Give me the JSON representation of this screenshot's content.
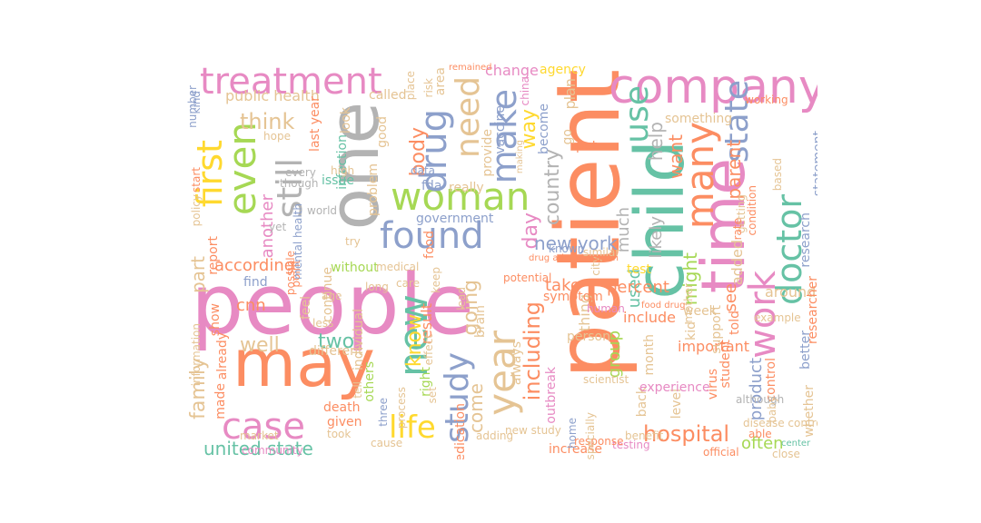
{
  "palette": {
    "pink": "#e78ac3",
    "orange": "#fc8d62",
    "teal": "#66c2a5",
    "blue": "#8da0cb",
    "green": "#a6d854",
    "yellow": "#ffd92f",
    "tan": "#e5c494",
    "gray": "#b3b3b3"
  },
  "words": [
    {
      "text": "people",
      "color": "pink"
    },
    {
      "text": "patient",
      "color": "orange"
    },
    {
      "text": "one",
      "color": "gray"
    },
    {
      "text": "may",
      "color": "orange"
    },
    {
      "text": "child",
      "color": "teal"
    },
    {
      "text": "time",
      "color": "pink"
    },
    {
      "text": "company",
      "color": "pink"
    },
    {
      "text": "treatment",
      "color": "pink"
    },
    {
      "text": "woman",
      "color": "green"
    },
    {
      "text": "many",
      "color": "orange"
    },
    {
      "text": "work",
      "color": "pink"
    },
    {
      "text": "doctor",
      "color": "teal"
    },
    {
      "text": "new",
      "color": "teal"
    },
    {
      "text": "year",
      "color": "tan"
    },
    {
      "text": "study",
      "color": "blue"
    },
    {
      "text": "drug",
      "color": "blue"
    },
    {
      "text": "found",
      "color": "blue"
    },
    {
      "text": "even",
      "color": "green"
    },
    {
      "text": "first",
      "color": "yellow"
    },
    {
      "text": "still",
      "color": "gray"
    },
    {
      "text": "case",
      "color": "pink"
    },
    {
      "text": "make",
      "color": "blue"
    },
    {
      "text": "need",
      "color": "tan"
    },
    {
      "text": "state",
      "color": "blue"
    },
    {
      "text": "use",
      "color": "teal"
    },
    {
      "text": "life",
      "color": "yellow"
    },
    {
      "text": "including",
      "color": "orange"
    },
    {
      "text": "hospital",
      "color": "orange"
    },
    {
      "text": "united state",
      "color": "teal"
    },
    {
      "text": "family",
      "color": "tan"
    },
    {
      "text": "well",
      "color": "tan"
    },
    {
      "text": "think",
      "color": "tan"
    },
    {
      "text": "part",
      "color": "tan"
    },
    {
      "text": "way",
      "color": "yellow"
    },
    {
      "text": "day",
      "color": "pink"
    },
    {
      "text": "country",
      "color": "gray"
    },
    {
      "text": "body",
      "color": "orange"
    },
    {
      "text": "know",
      "color": "yellow"
    },
    {
      "text": "going",
      "color": "tan"
    },
    {
      "text": "come",
      "color": "tan"
    },
    {
      "text": "parent",
      "color": "orange"
    },
    {
      "text": "help",
      "color": "gray"
    },
    {
      "text": "want",
      "color": "orange"
    },
    {
      "text": "added",
      "color": "tan"
    },
    {
      "text": "product",
      "color": "blue"
    },
    {
      "text": "might",
      "color": "green"
    },
    {
      "text": "group",
      "color": "green"
    },
    {
      "text": "used",
      "color": "teal"
    },
    {
      "text": "new york",
      "color": "blue"
    },
    {
      "text": "much",
      "color": "gray"
    },
    {
      "text": "likely",
      "color": "gray"
    },
    {
      "text": "often",
      "color": "green"
    },
    {
      "text": "two",
      "color": "teal"
    },
    {
      "text": "according",
      "color": "orange"
    },
    {
      "text": "another",
      "color": "pink"
    },
    {
      "text": "cnn",
      "color": "orange"
    },
    {
      "text": "take",
      "color": "orange"
    },
    {
      "text": "percent",
      "color": "orange"
    },
    {
      "text": "see",
      "color": "orange"
    },
    {
      "text": "told",
      "color": "orange"
    },
    {
      "text": "around",
      "color": "tan"
    },
    {
      "text": "thing",
      "color": "tan"
    },
    {
      "text": "important",
      "color": "orange"
    },
    {
      "text": "include",
      "color": "orange"
    },
    {
      "text": "result",
      "color": "orange"
    },
    {
      "text": "research",
      "color": "blue"
    },
    {
      "text": "researcher",
      "color": "orange"
    },
    {
      "text": "statement",
      "color": "blue"
    },
    {
      "text": "government",
      "color": "blue"
    },
    {
      "text": "public health",
      "color": "tan"
    },
    {
      "text": "change",
      "color": "pink"
    },
    {
      "text": "agency",
      "color": "yellow"
    },
    {
      "text": "china",
      "color": "pink"
    },
    {
      "text": "plan",
      "color": "tan"
    },
    {
      "text": "become",
      "color": "blue"
    },
    {
      "text": "food",
      "color": "orange"
    },
    {
      "text": "report",
      "color": "orange"
    },
    {
      "text": "test",
      "color": "yellow"
    },
    {
      "text": "week",
      "color": "tan"
    },
    {
      "text": "kid",
      "color": "tan"
    },
    {
      "text": "virus",
      "color": "orange"
    },
    {
      "text": "back",
      "color": "tan"
    },
    {
      "text": "month",
      "color": "tan"
    },
    {
      "text": "level",
      "color": "tan"
    },
    {
      "text": "support",
      "color": "tan"
    },
    {
      "text": "something",
      "color": "tan"
    },
    {
      "text": "experience",
      "color": "pink"
    },
    {
      "text": "increase",
      "color": "orange"
    },
    {
      "text": "testing",
      "color": "pink"
    },
    {
      "text": "official",
      "color": "orange"
    },
    {
      "text": "better",
      "color": "blue"
    },
    {
      "text": "whether",
      "color": "tan"
    },
    {
      "text": "made",
      "color": "orange"
    },
    {
      "text": "already",
      "color": "orange"
    },
    {
      "text": "death",
      "color": "orange"
    },
    {
      "text": "given",
      "color": "orange"
    },
    {
      "text": "show",
      "color": "orange"
    },
    {
      "text": "information",
      "color": "tan"
    },
    {
      "text": "feel",
      "color": "tan"
    },
    {
      "text": "individual",
      "color": "tan"
    },
    {
      "text": "different",
      "color": "tan"
    },
    {
      "text": "without",
      "color": "green"
    },
    {
      "text": "others",
      "color": "green"
    },
    {
      "text": "right",
      "color": "green"
    },
    {
      "text": "called",
      "color": "tan"
    },
    {
      "text": "good",
      "color": "tan"
    },
    {
      "text": "issue",
      "color": "teal"
    },
    {
      "text": "problem",
      "color": "tan"
    },
    {
      "text": "last year",
      "color": "orange"
    },
    {
      "text": "infection",
      "color": "teal"
    },
    {
      "text": "though",
      "color": "gray"
    },
    {
      "text": "continue",
      "color": "tan"
    },
    {
      "text": "point",
      "color": "orange"
    },
    {
      "text": "possible",
      "color": "orange"
    },
    {
      "text": "find",
      "color": "blue"
    },
    {
      "text": "look",
      "color": "tan"
    },
    {
      "text": "really",
      "color": "tan"
    },
    {
      "text": "vaccine",
      "color": "blue"
    },
    {
      "text": "provide",
      "color": "tan"
    },
    {
      "text": "data",
      "color": "blue"
    },
    {
      "text": "fda",
      "color": "blue"
    },
    {
      "text": "area",
      "color": "tan"
    },
    {
      "text": "person",
      "color": "tan"
    },
    {
      "text": "symptom",
      "color": "orange"
    },
    {
      "text": "known",
      "color": "blue"
    },
    {
      "text": "medication",
      "color": "orange"
    },
    {
      "text": "brain",
      "color": "tan"
    },
    {
      "text": "outbreak",
      "color": "pink"
    },
    {
      "text": "always",
      "color": "tan"
    },
    {
      "text": "effect",
      "color": "tan"
    },
    {
      "text": "home",
      "color": "blue"
    },
    {
      "text": "put",
      "color": "orange"
    },
    {
      "text": "go",
      "color": "tan"
    },
    {
      "text": "mother",
      "color": "tan"
    },
    {
      "text": "getting",
      "color": "tan"
    },
    {
      "text": "condition",
      "color": "orange"
    },
    {
      "text": "working",
      "color": "orange"
    },
    {
      "text": "student",
      "color": "orange"
    },
    {
      "text": "control",
      "color": "orange"
    },
    {
      "text": "disease control",
      "color": "tan"
    },
    {
      "text": "market",
      "color": "tan"
    },
    {
      "text": "community",
      "color": "pink"
    },
    {
      "text": "lead",
      "color": "tan"
    },
    {
      "text": "set",
      "color": "tan"
    },
    {
      "text": "response",
      "color": "orange"
    },
    {
      "text": "number",
      "color": "blue"
    },
    {
      "text": "policy",
      "color": "tan"
    },
    {
      "text": "start",
      "color": "orange"
    },
    {
      "text": "every",
      "color": "gray"
    },
    {
      "text": "world",
      "color": "gray"
    },
    {
      "text": "especially",
      "color": "tan"
    },
    {
      "text": "baby",
      "color": "tan"
    },
    {
      "text": "although",
      "color": "gray"
    },
    {
      "text": "able",
      "color": "orange"
    },
    {
      "text": "age",
      "color": "tan"
    },
    {
      "text": "yet",
      "color": "gray"
    },
    {
      "text": "tell",
      "color": "tan"
    },
    {
      "text": "try",
      "color": "tan"
    },
    {
      "text": "three",
      "color": "blue"
    },
    {
      "text": "city",
      "color": "tan"
    },
    {
      "text": "process",
      "color": "tan"
    },
    {
      "text": "risk",
      "color": "tan"
    },
    {
      "text": "place",
      "color": "tan"
    },
    {
      "text": "remained",
      "color": "orange"
    },
    {
      "text": "kind",
      "color": "blue"
    },
    {
      "text": "hope",
      "color": "tan"
    },
    {
      "text": "potential",
      "color": "orange"
    },
    {
      "text": "food drug",
      "color": "orange"
    },
    {
      "text": "making",
      "color": "tan"
    },
    {
      "text": "human",
      "color": "pink"
    },
    {
      "text": "scientist",
      "color": "tan"
    },
    {
      "text": "example",
      "color": "tan"
    },
    {
      "text": "keep",
      "color": "tan"
    },
    {
      "text": "drug administration",
      "color": "orange"
    },
    {
      "text": "high",
      "color": "tan"
    },
    {
      "text": "similar",
      "color": "tan"
    },
    {
      "text": "took",
      "color": "tan"
    },
    {
      "text": "less",
      "color": "tan"
    },
    {
      "text": "care",
      "color": "tan"
    },
    {
      "text": "cause",
      "color": "tan"
    },
    {
      "text": "medical",
      "color": "tan"
    },
    {
      "text": "mental health",
      "color": "blue"
    },
    {
      "text": "long",
      "color": "tan"
    },
    {
      "text": "based",
      "color": "tan"
    },
    {
      "text": "rate",
      "color": "orange"
    },
    {
      "text": "new study",
      "color": "tan"
    },
    {
      "text": "adding",
      "color": "tan"
    },
    {
      "text": "benefit",
      "color": "tan"
    },
    {
      "text": "close",
      "color": "tan"
    },
    {
      "text": "center",
      "color": "teal"
    }
  ]
}
